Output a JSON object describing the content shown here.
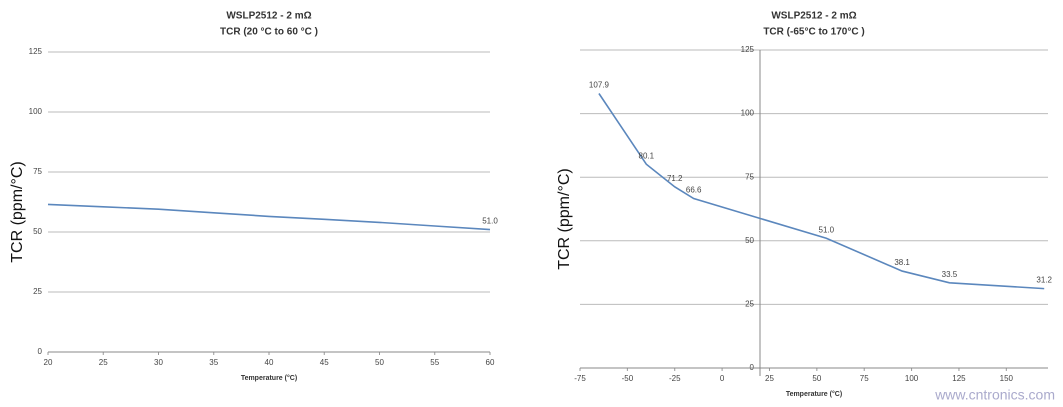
{
  "chart_data": [
    {
      "type": "line",
      "title": "WSLP2512 - 2 mΩ",
      "subtitle": "TCR (20 °C to 60 °C )",
      "x_label": "Temperature (°C)",
      "y_label": "TCR (ppm/°C)",
      "xlim": [
        20,
        60
      ],
      "ylim": [
        0,
        125
      ],
      "xticks": [
        20,
        25,
        30,
        35,
        40,
        45,
        50,
        55,
        60
      ],
      "yticks": [
        0,
        25,
        50,
        75,
        100,
        125
      ],
      "grid": true,
      "series": [
        {
          "name": "TCR",
          "color": "#5b87bd",
          "x": [
            20,
            25,
            30,
            35,
            40,
            45,
            50,
            55,
            60
          ],
          "values": [
            61.5,
            60.5,
            59.5,
            58,
            56.5,
            55.3,
            54,
            52.5,
            51
          ],
          "value_labels": [
            null,
            null,
            null,
            null,
            null,
            null,
            null,
            null,
            "51.0"
          ]
        }
      ]
    },
    {
      "type": "line",
      "title": "WSLP2512 - 2 mΩ",
      "subtitle": "TCR (-65°C to 170°C )",
      "x_label": "Temperature (°C)",
      "y_label": "TCR (ppm/°C)",
      "xlim": [
        -75,
        172
      ],
      "ylim": [
        0,
        125
      ],
      "xticks": [
        -75,
        -50,
        -25,
        0,
        25,
        50,
        75,
        100,
        125,
        150
      ],
      "yticks": [
        0,
        25,
        50,
        75,
        100,
        125
      ],
      "grid": true,
      "y_axis_at": 20,
      "series": [
        {
          "name": "TCR",
          "color": "#5b87bd",
          "x": [
            -65,
            -40,
            -25,
            -15,
            55,
            95,
            120,
            170
          ],
          "values": [
            107.9,
            80.1,
            71.2,
            66.6,
            51,
            38.1,
            33.5,
            31.2
          ],
          "value_labels": [
            "107.9",
            "80.1",
            "71.2",
            "66.6",
            "51.0",
            "38.1",
            "33.5",
            "31.2"
          ]
        }
      ]
    }
  ],
  "watermark": "www.cntronics.com"
}
